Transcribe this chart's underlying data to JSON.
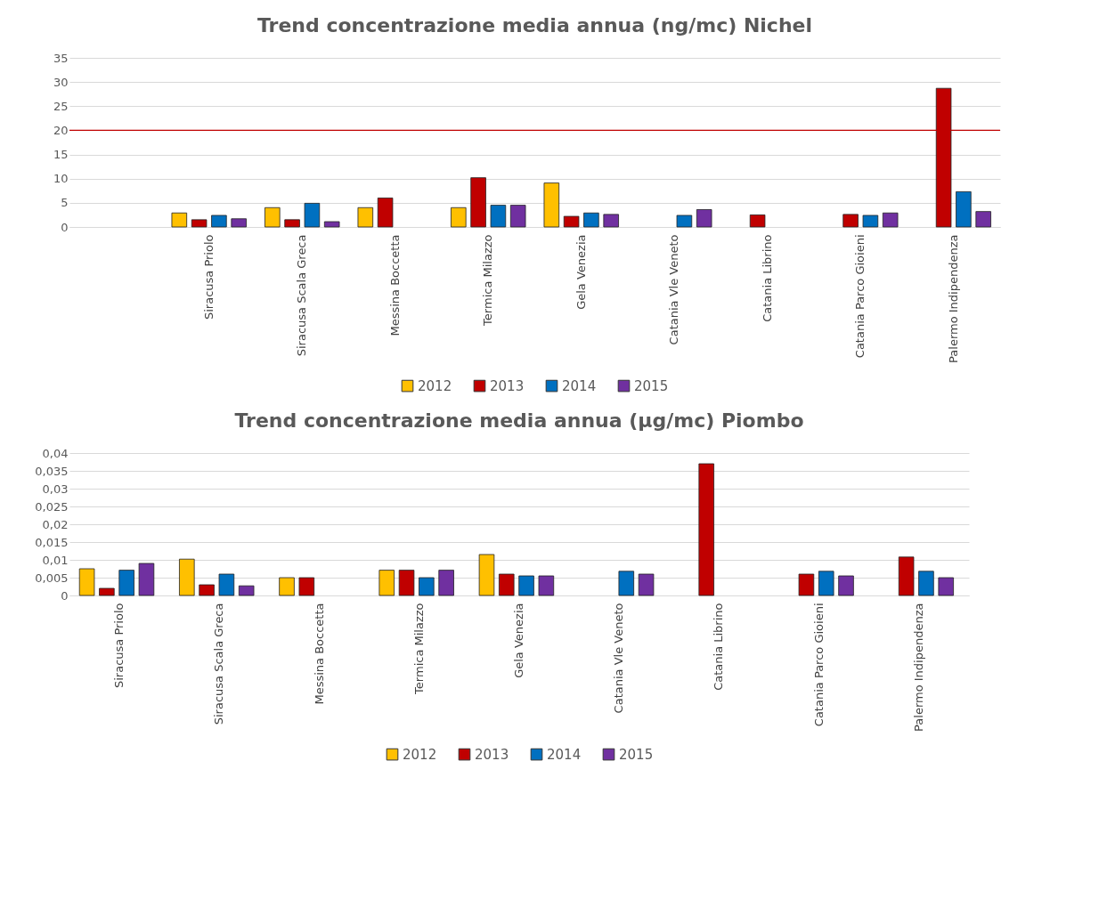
{
  "chart_data": [
    {
      "type": "bar",
      "title": "Trend concentrazione  media annua (ng/mc) Nichel",
      "categories": [
        null,
        "Siracusa Priolo",
        "Siracusa Scala Greca",
        "Messina Boccetta",
        "Termica Milazzo",
        "Gela Venezia",
        "Catania Vle Veneto",
        "Catania Librino",
        "Catania Parco Gioieni",
        "Palermo Indipendenza"
      ],
      "series": [
        {
          "name": "2012",
          "color": "#ffc000",
          "values": [
            null,
            2.9,
            4.0,
            4.0,
            4.0,
            9.1,
            null,
            null,
            null,
            null
          ]
        },
        {
          "name": "2013",
          "color": "#c00000",
          "values": [
            null,
            1.5,
            1.5,
            6.0,
            10.2,
            2.2,
            null,
            2.5,
            2.6,
            28.7
          ]
        },
        {
          "name": "2014",
          "color": "#0070c0",
          "values": [
            null,
            2.4,
            4.9,
            null,
            4.5,
            2.9,
            2.4,
            null,
            2.4,
            7.3
          ]
        },
        {
          "name": "2015",
          "color": "#7030a0",
          "values": [
            null,
            1.7,
            1.1,
            null,
            4.5,
            2.6,
            3.6,
            null,
            2.9,
            3.2
          ]
        }
      ],
      "ylim": [
        0,
        35
      ],
      "yticks": [
        0,
        5,
        10,
        15,
        20,
        25,
        30,
        35
      ],
      "grid": "y",
      "legend": "bottom",
      "ref_lines": [
        {
          "axis": "y",
          "value": 20,
          "color": "#c00000"
        }
      ]
    },
    {
      "type": "bar",
      "title": "Trend concentrazione  media annua (µg/mc) Piombo",
      "categories": [
        "Siracusa Priolo",
        "Siracusa Scala Greca",
        "Messina Boccetta",
        "Termica Milazzo",
        "Gela Venezia",
        "Catania Vle Veneto",
        "Catania Librino",
        "Catania Parco Gioieni",
        "Palermo Indipendenza"
      ],
      "series": [
        {
          "name": "2012",
          "color": "#ffc000",
          "values": [
            0.0075,
            0.0102,
            0.005,
            0.0071,
            0.0115,
            null,
            null,
            null,
            null
          ]
        },
        {
          "name": "2013",
          "color": "#c00000",
          "values": [
            0.002,
            0.003,
            0.005,
            0.0071,
            0.006,
            null,
            0.037,
            0.006,
            0.0108
          ]
        },
        {
          "name": "2014",
          "color": "#0070c0",
          "values": [
            0.0071,
            0.006,
            null,
            0.005,
            0.0055,
            0.0068,
            null,
            0.0068,
            0.0068
          ]
        },
        {
          "name": "2015",
          "color": "#7030a0",
          "values": [
            0.009,
            0.0027,
            null,
            0.0071,
            0.0055,
            0.006,
            null,
            0.0055,
            0.005
          ]
        }
      ],
      "ylim": [
        0,
        0.04
      ],
      "yticks": [
        0,
        {
          "value": 0.005,
          "label": "0,005"
        },
        {
          "value": 0.01,
          "label": "0,01"
        },
        {
          "value": 0.015,
          "label": "0,015"
        },
        {
          "value": 0.02,
          "label": "0,02"
        },
        {
          "value": 0.025,
          "label": "0,025"
        },
        {
          "value": 0.03,
          "label": "0,03"
        },
        {
          "value": 0.035,
          "label": "0,035"
        },
        {
          "value": 0.04,
          "label": "0,04"
        }
      ],
      "grid": "y",
      "legend": "bottom"
    }
  ]
}
